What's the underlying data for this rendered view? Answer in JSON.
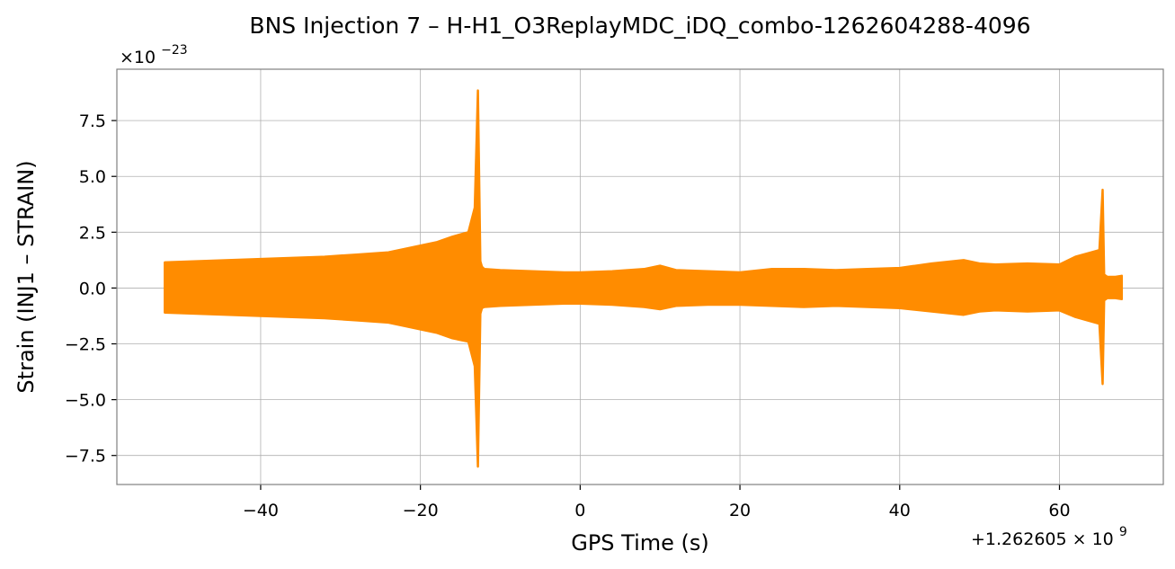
{
  "chart_data": {
    "type": "line",
    "title": "BNS Injection 7 – H-H1_O3ReplayMDC_iDQ_combo-1262604288-4096",
    "xlabel": "GPS Time (s)",
    "ylabel": "Strain (INJ1 – STRAIN)",
    "y_scale_label": "×10",
    "y_scale_exp": "−23",
    "x_offset_label": "+1.262605 × 10",
    "x_offset_exp": "9",
    "xlim": [
      -58,
      73
    ],
    "ylim": [
      -8.8,
      9.8
    ],
    "grid": true,
    "color": "#ff8c00",
    "x_ticks": [
      -40,
      -20,
      0,
      20,
      40,
      60
    ],
    "x_tick_labels": [
      "−40",
      "−20",
      "0",
      "20",
      "40",
      "60"
    ],
    "y_ticks": [
      -7.5,
      -5.0,
      -2.5,
      0.0,
      2.5,
      5.0,
      7.5
    ],
    "y_tick_labels": [
      "−7.5",
      "−5.0",
      "−2.5",
      "0.0",
      "2.5",
      "5.0",
      "7.5"
    ],
    "series": [
      {
        "envelope": {
          "x": [
            -52,
            -48,
            -44,
            -40,
            -36,
            -32,
            -28,
            -24,
            -22,
            -20,
            -18,
            -16,
            -14,
            -13.2,
            -12.8,
            -12.5,
            -12.3,
            -12,
            -10,
            -6,
            -2,
            0,
            4,
            8,
            10,
            12,
            16,
            20,
            24,
            28,
            32,
            36,
            40,
            44,
            48,
            50,
            52,
            56,
            60,
            62,
            64,
            65,
            65.4,
            65.6,
            65.8,
            66,
            67,
            67.8
          ],
          "upper": [
            1.15,
            1.2,
            1.25,
            1.3,
            1.35,
            1.4,
            1.5,
            1.6,
            1.75,
            1.9,
            2.05,
            2.3,
            2.5,
            3.6,
            8.85,
            1.2,
            0.95,
            0.85,
            0.8,
            0.75,
            0.7,
            0.7,
            0.75,
            0.85,
            1.0,
            0.8,
            0.75,
            0.7,
            0.85,
            0.85,
            0.8,
            0.85,
            0.9,
            1.1,
            1.25,
            1.1,
            1.05,
            1.1,
            1.05,
            1.4,
            1.6,
            1.7,
            4.4,
            0.6,
            0.55,
            0.5,
            0.5,
            0.55
          ],
          "lower": [
            -1.1,
            -1.15,
            -1.2,
            -1.25,
            -1.3,
            -1.35,
            -1.45,
            -1.55,
            -1.7,
            -1.85,
            -2.0,
            -2.25,
            -2.4,
            -3.5,
            -8.0,
            -1.15,
            -0.9,
            -0.85,
            -0.8,
            -0.75,
            -0.7,
            -0.7,
            -0.75,
            -0.85,
            -0.95,
            -0.8,
            -0.75,
            -0.75,
            -0.8,
            -0.85,
            -0.8,
            -0.85,
            -0.9,
            -1.05,
            -1.2,
            -1.05,
            -1.0,
            -1.05,
            -1.0,
            -1.3,
            -1.5,
            -1.6,
            -4.3,
            -0.55,
            -0.5,
            -0.45,
            -0.45,
            -0.5
          ]
        }
      }
    ]
  }
}
